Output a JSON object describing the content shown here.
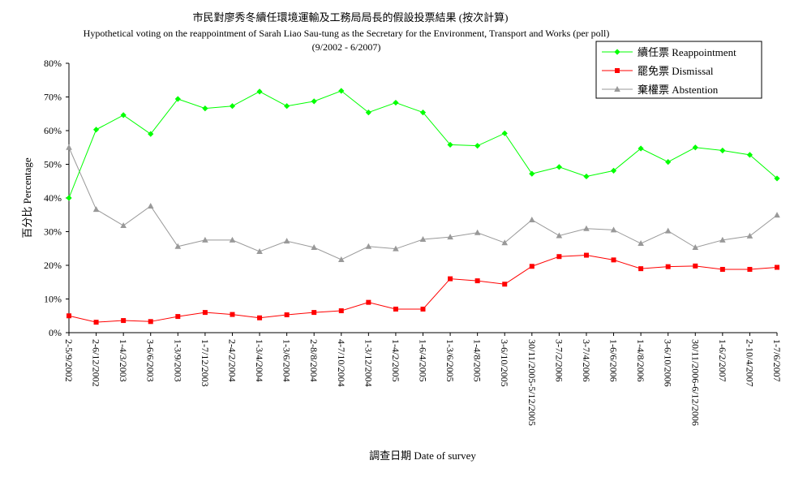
{
  "chart_data": {
    "type": "line",
    "title": "市民對廖秀冬續任環境運輸及工務局局長的假設投票結果 (按次計算)",
    "subtitle": "Hypothetical voting on the reappointment of Sarah Liao Sau-tung as the Secretary for the Environment, Transport and Works (per poll)",
    "period": "(9/2002 - 6/2007)",
    "xlabel": "調查日期 Date of survey",
    "ylabel": "百分比 Percentage",
    "ylim": [
      0,
      80
    ],
    "yticks": [
      "0%",
      "10%",
      "20%",
      "30%",
      "40%",
      "50%",
      "60%",
      "70%",
      "80%"
    ],
    "legend_position": "top-right",
    "categories": [
      "2-5/9/2002",
      "2-6/12/2002",
      "1-4/3/2003",
      "3-6/6/2003",
      "1-3/9/2003",
      "1-7/12/2003",
      "2-4/2/2004",
      "1-3/4/2004",
      "1-3/6/2004",
      "2-8/8/2004",
      "4-7/10/2004",
      "1-3/12/2004",
      "1-4/2/2005",
      "1-6/4/2005",
      "1-3/6/2005",
      "1-4/8/2005",
      "3-6/10/2005",
      "30/11/2005-5/12/2005",
      "3-7/2/2006",
      "3-7/4/2006",
      "1-6/6/2006",
      "1-4/8/2006",
      "3-6/10/2006",
      "30/11/2006-6/12/2006",
      "1-6/2/2007",
      "2-10/4/2007",
      "1-7/6/2007"
    ],
    "series": [
      {
        "name": "續任票 Reappointment",
        "color": "#00ff00",
        "marker": "diamond",
        "values": [
          40.0,
          60.3,
          64.6,
          59.0,
          69.4,
          66.6,
          67.3,
          71.6,
          67.3,
          68.7,
          71.8,
          65.4,
          68.3,
          65.4,
          55.8,
          55.5,
          59.2,
          47.2,
          49.2,
          46.4,
          48.1,
          54.7,
          50.7,
          55.0,
          54.1,
          52.8,
          45.8
        ]
      },
      {
        "name": "罷免票 Dismissal",
        "color": "#ff0000",
        "marker": "square",
        "values": [
          5.0,
          3.1,
          3.6,
          3.3,
          4.8,
          6.0,
          5.4,
          4.4,
          5.3,
          6.0,
          6.5,
          9.0,
          7.0,
          7.0,
          16.0,
          15.4,
          14.4,
          19.7,
          22.6,
          23.0,
          21.6,
          19.0,
          19.6,
          19.8,
          18.8,
          18.8,
          19.4
        ]
      },
      {
        "name": "棄權票 Abstention",
        "color": "#999999",
        "marker": "triangle",
        "values": [
          55.0,
          36.6,
          31.8,
          37.6,
          25.6,
          27.5,
          27.5,
          24.1,
          27.2,
          25.3,
          21.7,
          25.6,
          24.9,
          27.7,
          28.4,
          29.7,
          26.7,
          33.5,
          28.8,
          30.9,
          30.5,
          26.5,
          30.2,
          25.3,
          27.5,
          28.7,
          34.9
        ]
      }
    ]
  }
}
